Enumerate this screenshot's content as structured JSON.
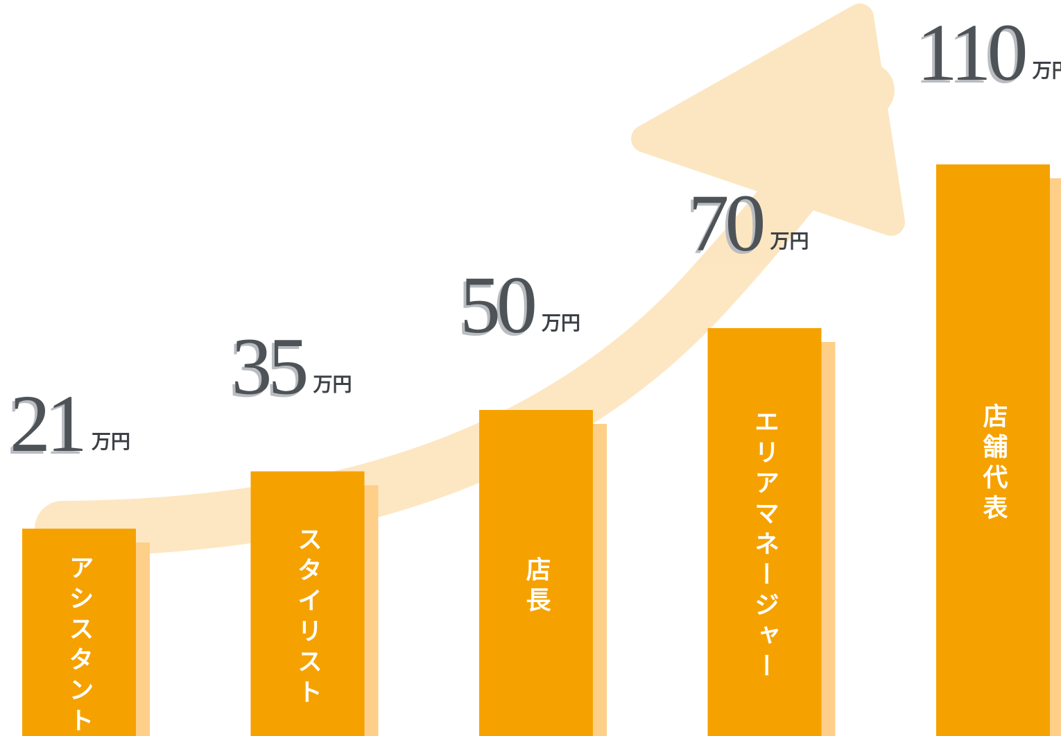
{
  "chart_data": {
    "type": "bar",
    "categories": [
      "アシスタント",
      "スタイリスト",
      "店長",
      "エリアマネージャー",
      "店舗代表"
    ],
    "values": [
      21,
      35,
      50,
      70,
      110
    ],
    "unit": "万円",
    "color": "#f5a200",
    "shadow_color": "#fdcf88"
  }
}
